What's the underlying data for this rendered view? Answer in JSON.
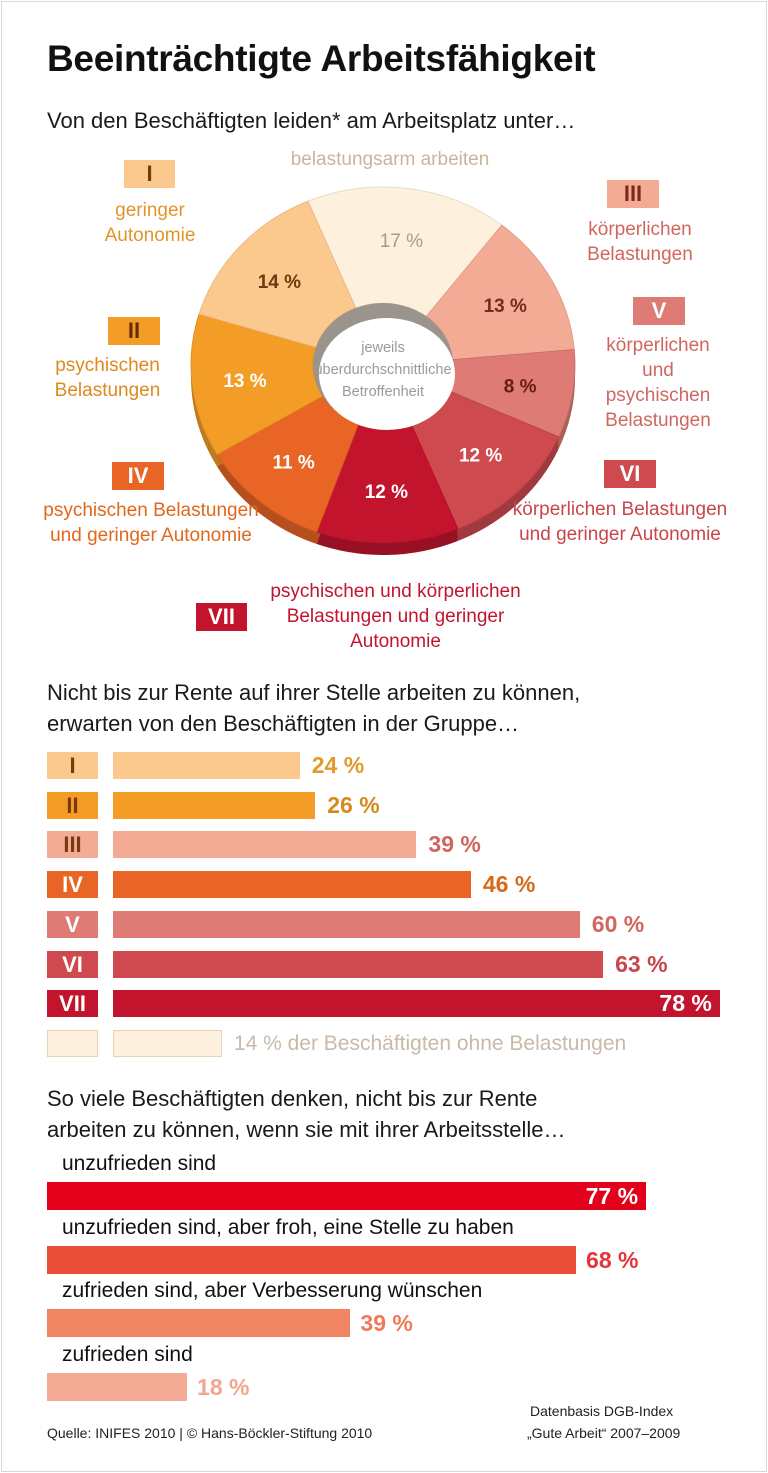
{
  "title": "Beeinträchtigte Arbeitsfähigkeit",
  "subtitle1": "Von den Beschäftigten leiden* am Arbeitsplatz unter…",
  "center_text": [
    "jeweils",
    "überdurchschnittliche",
    "Betroffenheit"
  ],
  "subtitle2": [
    "Nicht bis zur Rente auf ihrer Stelle arbeiten zu können,",
    "erwarten von den Beschäftigten in der Gruppe…"
  ],
  "subtitle3": [
    "So viele Beschäftigten denken, nicht bis zur Rente",
    "arbeiten zu können, wenn sie mit ihrer Arbeitsstelle…"
  ],
  "footer": {
    "source": "Quelle: INIFES 2010 | © Hans-Böckler-Stiftung 2010",
    "basis1": "Datenbasis DGB-Index",
    "basis2": "„Gute Arbeit“ 2007–2009"
  },
  "chart_data": [
    {
      "type": "pie",
      "title": "Von den Beschäftigten leiden* am Arbeitsplatz unter…",
      "slices": [
        {
          "id": "0",
          "roman": "",
          "label": "belastungsarm arbeiten",
          "value": 17,
          "display": "17 %",
          "color": "#fdf0dd",
          "text_color": "#a89a8a"
        },
        {
          "id": "III",
          "roman": "III",
          "label": "körperlichen Belastungen",
          "value": 13,
          "display": "13 %",
          "color": "#f4ab95",
          "text_color": "#7a2a18"
        },
        {
          "id": "V",
          "roman": "V",
          "label": "körperlichen und psychischen Belastungen",
          "value": 8,
          "display": "8 %",
          "color": "#dd7b74",
          "text_color": "#6a1a14"
        },
        {
          "id": "VI",
          "roman": "VI",
          "label": "körperlichen Belastungen und geringer Autonomie",
          "value": 12,
          "display": "12 %",
          "color": "#cf4a4f",
          "text_color": "#ffffff"
        },
        {
          "id": "VII",
          "roman": "VII",
          "label": "psychischen und körperlichen Belastungen und geringer Autonomie",
          "value": 12,
          "display": "12 %",
          "color": "#c3142e",
          "text_color": "#ffffff"
        },
        {
          "id": "IV",
          "roman": "IV",
          "label": "psychischen Belastungen und geringer Autonomie",
          "value": 11,
          "display": "11 %",
          "color": "#e96525",
          "text_color": "#ffffff"
        },
        {
          "id": "II",
          "roman": "II",
          "label": "psychischen Belastungen",
          "value": 13,
          "display": "13 %",
          "color": "#f39c26",
          "text_color": "#ffffff"
        },
        {
          "id": "I",
          "roman": "I",
          "label": "geringer Autonomie",
          "value": 14,
          "display": "14 %",
          "color": "#fbc98e",
          "text_color": "#6a3a10"
        }
      ]
    },
    {
      "type": "bar",
      "title": "Nicht bis zur Rente auf ihrer Stelle arbeiten zu können, erwarten von den Beschäftigten in der Gruppe…",
      "categories": [
        "I",
        "II",
        "III",
        "IV",
        "V",
        "VI",
        "VII",
        ""
      ],
      "values": [
        24,
        26,
        39,
        46,
        60,
        63,
        78,
        14
      ],
      "labels": [
        "24 %",
        "26 %",
        "39 %",
        "46 %",
        "60 %",
        "63 %",
        "78 %",
        "14 % der Beschäftigten ohne Belastungen"
      ],
      "colors": [
        "#fbc98e",
        "#f39c26",
        "#f4ab95",
        "#e96525",
        "#dd7b74",
        "#cf4a4f",
        "#c3142e",
        "#fdf0dd"
      ],
      "label_colors": [
        "#e39a2c",
        "#d9891c",
        "#d0675c",
        "#d66a18",
        "#d06660",
        "#c9454a",
        "#ffffff",
        "#c9b9a8"
      ],
      "roman_text_colors": [
        "#7a3a10",
        "#7a3a10",
        "#7a3a10",
        "#ffffff",
        "#ffffff",
        "#ffffff",
        "#ffffff",
        ""
      ],
      "xlim": [
        0,
        100
      ]
    },
    {
      "type": "bar",
      "title": "So viele Beschäftigten denken, nicht bis zur Rente arbeiten zu können, wenn sie mit ihrer Arbeitsstelle…",
      "categories": [
        "unzufrieden sind",
        "unzufrieden sind, aber froh, eine Stelle zu haben",
        "zufrieden sind, aber Verbesserung wünschen",
        "zufrieden sind"
      ],
      "values": [
        77,
        68,
        39,
        18
      ],
      "labels": [
        "77 %",
        "68 %",
        "39 %",
        "18 %"
      ],
      "colors": [
        "#e3001b",
        "#e84f36",
        "#ef8563",
        "#f4ab95"
      ],
      "label_colors": [
        "#ffffff",
        "#e3353a",
        "#ef7a58",
        "#f3a68e"
      ],
      "xlim": [
        0,
        100
      ]
    }
  ]
}
